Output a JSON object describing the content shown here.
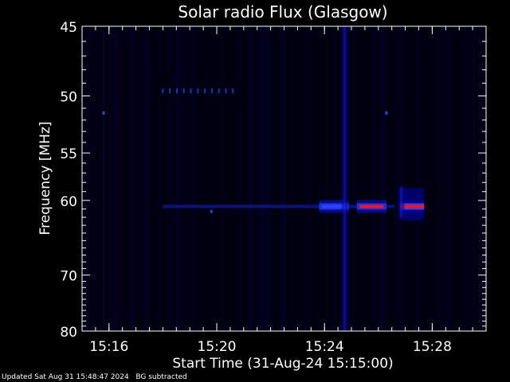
{
  "chart_data": {
    "type": "heatmap",
    "title": "Solar radio Flux (Glasgow)",
    "xlabel": "Start Time (31-Aug-24 15:15:00)",
    "ylabel": "Frequency [MHz]",
    "x_unit": "minutes after 15:15:00",
    "xlim": [
      0,
      15
    ],
    "ylim": [
      45,
      80
    ],
    "y_scale": "reciprocal",
    "x_ticks": [
      {
        "label": "15:16",
        "value": 1
      },
      {
        "label": "15:20",
        "value": 5
      },
      {
        "label": "15:24",
        "value": 9
      },
      {
        "label": "15:28",
        "value": 13
      }
    ],
    "y_ticks": [
      {
        "label": "45",
        "value": 45
      },
      {
        "label": "50",
        "value": 50
      },
      {
        "label": "55",
        "value": 55
      },
      {
        "label": "60",
        "value": 60
      },
      {
        "label": "70",
        "value": 70
      },
      {
        "label": "80",
        "value": 80
      }
    ],
    "y_minor_ticks": [
      46,
      47,
      48,
      49,
      51,
      52,
      53,
      54,
      56,
      57,
      58,
      59,
      61,
      62,
      63,
      64,
      65,
      66,
      67,
      68,
      69,
      71,
      72,
      73,
      74,
      75,
      76,
      77,
      78,
      79
    ],
    "colorscale": [
      "#000010",
      "#00003a",
      "#0000c8",
      "#4040ff",
      "#ff0000"
    ],
    "background_color": "#000010",
    "features": [
      {
        "kind": "horizontal-band",
        "freq_mhz": 60.7,
        "t_start": 3.0,
        "t_end": 11.6,
        "intensity": 0.25
      },
      {
        "kind": "burst-cluster",
        "freq_mhz": 60.7,
        "t_start": 8.8,
        "t_end": 9.9,
        "intensity": 0.6
      },
      {
        "kind": "burst-cluster",
        "freq_mhz": 60.7,
        "t_start": 10.2,
        "t_end": 11.3,
        "intensity": 0.9
      },
      {
        "kind": "burst-cluster",
        "freq_mhz": 60.7,
        "t_start": 11.8,
        "t_end": 12.7,
        "intensity": 1.0
      },
      {
        "kind": "vertical-streak",
        "t": 9.75,
        "f_start": 45,
        "f_end": 80,
        "intensity": 0.45
      },
      {
        "kind": "vertical-streak",
        "t": 11.85,
        "f_start": 58.5,
        "f_end": 62,
        "intensity": 0.5
      },
      {
        "kind": "dotted-line",
        "freq_mhz": 49.6,
        "t_start": 3.0,
        "t_end": 5.8,
        "intensity": 0.5
      },
      {
        "kind": "dot",
        "t": 0.8,
        "freq_mhz": 51.4,
        "intensity": 0.5
      },
      {
        "kind": "dot",
        "t": 11.3,
        "freq_mhz": 51.4,
        "intensity": 0.5
      },
      {
        "kind": "dot",
        "t": 4.8,
        "freq_mhz": 61.3,
        "intensity": 0.4
      }
    ]
  },
  "footer": {
    "updated": "Updated Sat Aug 31 15:48:47 2024",
    "mode": "BG subtracted"
  }
}
